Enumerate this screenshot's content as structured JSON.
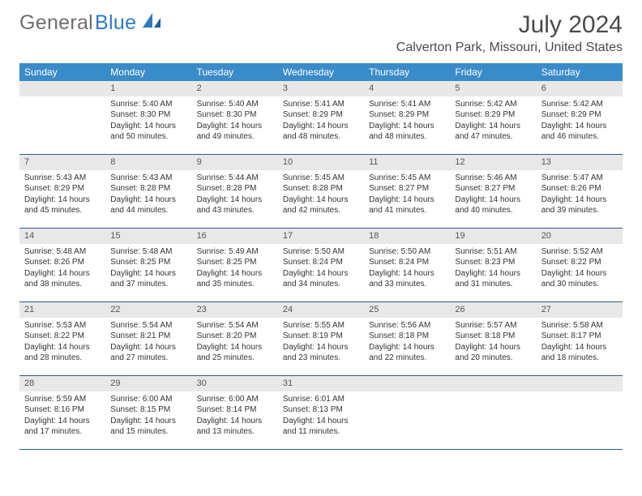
{
  "logo": {
    "partA": "General",
    "partB": "Blue"
  },
  "title": "July 2024",
  "subtitle": "Calverton Park, Missouri, United States",
  "colors": {
    "header_bg": "#3a8bc9",
    "header_text": "#ffffff",
    "daynum_bg": "#e8e8e8",
    "border": "#2f5b8a",
    "logo_gray": "#6e6e6e",
    "logo_blue": "#2f7ac0"
  },
  "day_headers": [
    "Sunday",
    "Monday",
    "Tuesday",
    "Wednesday",
    "Thursday",
    "Friday",
    "Saturday"
  ],
  "weeks": [
    [
      {
        "empty": true
      },
      {
        "num": "1",
        "l1": "Sunrise: 5:40 AM",
        "l2": "Sunset: 8:30 PM",
        "l3": "Daylight: 14 hours",
        "l4": "and 50 minutes."
      },
      {
        "num": "2",
        "l1": "Sunrise: 5:40 AM",
        "l2": "Sunset: 8:30 PM",
        "l3": "Daylight: 14 hours",
        "l4": "and 49 minutes."
      },
      {
        "num": "3",
        "l1": "Sunrise: 5:41 AM",
        "l2": "Sunset: 8:29 PM",
        "l3": "Daylight: 14 hours",
        "l4": "and 48 minutes."
      },
      {
        "num": "4",
        "l1": "Sunrise: 5:41 AM",
        "l2": "Sunset: 8:29 PM",
        "l3": "Daylight: 14 hours",
        "l4": "and 48 minutes."
      },
      {
        "num": "5",
        "l1": "Sunrise: 5:42 AM",
        "l2": "Sunset: 8:29 PM",
        "l3": "Daylight: 14 hours",
        "l4": "and 47 minutes."
      },
      {
        "num": "6",
        "l1": "Sunrise: 5:42 AM",
        "l2": "Sunset: 8:29 PM",
        "l3": "Daylight: 14 hours",
        "l4": "and 46 minutes."
      }
    ],
    [
      {
        "num": "7",
        "l1": "Sunrise: 5:43 AM",
        "l2": "Sunset: 8:29 PM",
        "l3": "Daylight: 14 hours",
        "l4": "and 45 minutes."
      },
      {
        "num": "8",
        "l1": "Sunrise: 5:43 AM",
        "l2": "Sunset: 8:28 PM",
        "l3": "Daylight: 14 hours",
        "l4": "and 44 minutes."
      },
      {
        "num": "9",
        "l1": "Sunrise: 5:44 AM",
        "l2": "Sunset: 8:28 PM",
        "l3": "Daylight: 14 hours",
        "l4": "and 43 minutes."
      },
      {
        "num": "10",
        "l1": "Sunrise: 5:45 AM",
        "l2": "Sunset: 8:28 PM",
        "l3": "Daylight: 14 hours",
        "l4": "and 42 minutes."
      },
      {
        "num": "11",
        "l1": "Sunrise: 5:45 AM",
        "l2": "Sunset: 8:27 PM",
        "l3": "Daylight: 14 hours",
        "l4": "and 41 minutes."
      },
      {
        "num": "12",
        "l1": "Sunrise: 5:46 AM",
        "l2": "Sunset: 8:27 PM",
        "l3": "Daylight: 14 hours",
        "l4": "and 40 minutes."
      },
      {
        "num": "13",
        "l1": "Sunrise: 5:47 AM",
        "l2": "Sunset: 8:26 PM",
        "l3": "Daylight: 14 hours",
        "l4": "and 39 minutes."
      }
    ],
    [
      {
        "num": "14",
        "l1": "Sunrise: 5:48 AM",
        "l2": "Sunset: 8:26 PM",
        "l3": "Daylight: 14 hours",
        "l4": "and 38 minutes."
      },
      {
        "num": "15",
        "l1": "Sunrise: 5:48 AM",
        "l2": "Sunset: 8:25 PM",
        "l3": "Daylight: 14 hours",
        "l4": "and 37 minutes."
      },
      {
        "num": "16",
        "l1": "Sunrise: 5:49 AM",
        "l2": "Sunset: 8:25 PM",
        "l3": "Daylight: 14 hours",
        "l4": "and 35 minutes."
      },
      {
        "num": "17",
        "l1": "Sunrise: 5:50 AM",
        "l2": "Sunset: 8:24 PM",
        "l3": "Daylight: 14 hours",
        "l4": "and 34 minutes."
      },
      {
        "num": "18",
        "l1": "Sunrise: 5:50 AM",
        "l2": "Sunset: 8:24 PM",
        "l3": "Daylight: 14 hours",
        "l4": "and 33 minutes."
      },
      {
        "num": "19",
        "l1": "Sunrise: 5:51 AM",
        "l2": "Sunset: 8:23 PM",
        "l3": "Daylight: 14 hours",
        "l4": "and 31 minutes."
      },
      {
        "num": "20",
        "l1": "Sunrise: 5:52 AM",
        "l2": "Sunset: 8:22 PM",
        "l3": "Daylight: 14 hours",
        "l4": "and 30 minutes."
      }
    ],
    [
      {
        "num": "21",
        "l1": "Sunrise: 5:53 AM",
        "l2": "Sunset: 8:22 PM",
        "l3": "Daylight: 14 hours",
        "l4": "and 28 minutes."
      },
      {
        "num": "22",
        "l1": "Sunrise: 5:54 AM",
        "l2": "Sunset: 8:21 PM",
        "l3": "Daylight: 14 hours",
        "l4": "and 27 minutes."
      },
      {
        "num": "23",
        "l1": "Sunrise: 5:54 AM",
        "l2": "Sunset: 8:20 PM",
        "l3": "Daylight: 14 hours",
        "l4": "and 25 minutes."
      },
      {
        "num": "24",
        "l1": "Sunrise: 5:55 AM",
        "l2": "Sunset: 8:19 PM",
        "l3": "Daylight: 14 hours",
        "l4": "and 23 minutes."
      },
      {
        "num": "25",
        "l1": "Sunrise: 5:56 AM",
        "l2": "Sunset: 8:18 PM",
        "l3": "Daylight: 14 hours",
        "l4": "and 22 minutes."
      },
      {
        "num": "26",
        "l1": "Sunrise: 5:57 AM",
        "l2": "Sunset: 8:18 PM",
        "l3": "Daylight: 14 hours",
        "l4": "and 20 minutes."
      },
      {
        "num": "27",
        "l1": "Sunrise: 5:58 AM",
        "l2": "Sunset: 8:17 PM",
        "l3": "Daylight: 14 hours",
        "l4": "and 18 minutes."
      }
    ],
    [
      {
        "num": "28",
        "l1": "Sunrise: 5:59 AM",
        "l2": "Sunset: 8:16 PM",
        "l3": "Daylight: 14 hours",
        "l4": "and 17 minutes."
      },
      {
        "num": "29",
        "l1": "Sunrise: 6:00 AM",
        "l2": "Sunset: 8:15 PM",
        "l3": "Daylight: 14 hours",
        "l4": "and 15 minutes."
      },
      {
        "num": "30",
        "l1": "Sunrise: 6:00 AM",
        "l2": "Sunset: 8:14 PM",
        "l3": "Daylight: 14 hours",
        "l4": "and 13 minutes."
      },
      {
        "num": "31",
        "l1": "Sunrise: 6:01 AM",
        "l2": "Sunset: 8:13 PM",
        "l3": "Daylight: 14 hours",
        "l4": "and 11 minutes."
      },
      {
        "empty": true
      },
      {
        "empty": true
      },
      {
        "empty": true
      }
    ]
  ]
}
